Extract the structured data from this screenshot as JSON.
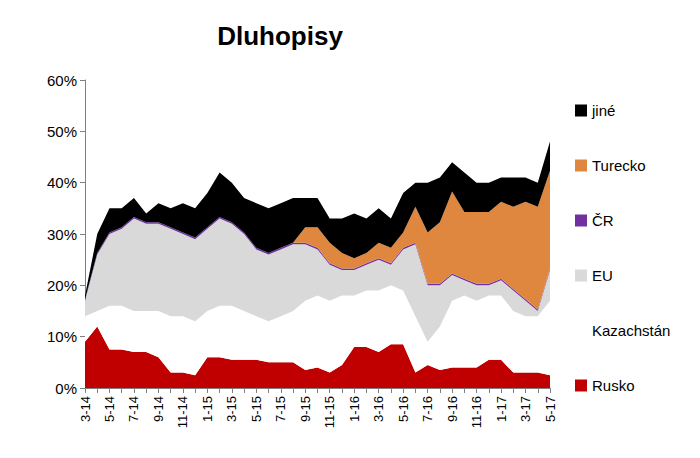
{
  "chart_data": {
    "type": "area",
    "title": "Dluhopisy",
    "stacked": true,
    "grid": false,
    "legend": "right",
    "categories": [
      "3-14",
      null,
      "5-14",
      null,
      "7-14",
      null,
      "9-14",
      null,
      "11-14",
      null,
      "1-15",
      null,
      "3-15",
      null,
      "5-15",
      null,
      "7-15",
      null,
      "9-15",
      null,
      "11-15",
      null,
      "1-16",
      null,
      "3-16",
      null,
      "5-16",
      null,
      "7-16",
      null,
      "9-16",
      null,
      "11-16",
      null,
      "1-17",
      null,
      "3-17",
      null,
      "5-17"
    ],
    "ylim": [
      0,
      60
    ],
    "yticks": [
      {
        "value": 0,
        "label": "0%"
      },
      {
        "value": 10,
        "label": "10%"
      },
      {
        "value": 20,
        "label": "20%"
      },
      {
        "value": 30,
        "label": "30%"
      },
      {
        "value": 40,
        "label": "40%"
      },
      {
        "value": 50,
        "label": "50%"
      },
      {
        "value": 60,
        "label": "60%"
      }
    ],
    "series": [
      {
        "name": "Rusko",
        "color": "#c00000",
        "values": [
          9,
          12,
          7.5,
          7.5,
          7,
          7,
          6,
          3,
          3,
          2.5,
          6,
          6,
          5.5,
          5.5,
          5.5,
          5,
          5,
          5,
          3.5,
          4,
          3,
          4.5,
          8,
          8,
          7,
          8.5,
          8.5,
          3,
          4.5,
          3.5,
          4,
          4,
          4,
          5.5,
          5.5,
          3,
          3,
          3,
          2.5
        ]
      },
      {
        "name": "Kazachstán",
        "color": "#ffffff",
        "values": [
          5,
          3,
          8.5,
          8.5,
          8,
          8,
          9,
          11,
          11,
          10.5,
          9,
          10,
          10.5,
          9.5,
          8.5,
          8,
          9,
          10,
          13.5,
          14,
          14,
          13.5,
          10,
          11,
          12,
          11.5,
          10.5,
          11,
          4.5,
          8.5,
          13,
          14,
          13,
          12.5,
          12.5,
          12,
          11,
          11,
          14.5
        ]
      },
      {
        "name": "EU",
        "color": "#d9d9d9",
        "values": [
          3,
          11,
          14,
          15,
          18,
          17,
          17,
          17,
          16,
          16,
          16,
          17,
          16,
          15,
          13,
          13,
          13,
          13,
          11,
          9,
          7,
          5,
          5,
          5,
          6,
          4,
          8,
          14,
          11,
          8,
          5,
          3,
          3,
          2,
          3,
          4,
          3,
          1,
          6
        ]
      },
      {
        "name": "ČR",
        "color": "#7030a0",
        "values": [
          0.3,
          0.3,
          0.3,
          0.3,
          0.3,
          0.3,
          0.3,
          0.3,
          0.3,
          0.3,
          0.3,
          0.3,
          0.3,
          0.3,
          0.3,
          0.3,
          0.3,
          0.3,
          0.3,
          0.3,
          0.3,
          0.3,
          0.3,
          0.3,
          0.3,
          0.3,
          0.3,
          0.3,
          0.3,
          0.3,
          0.3,
          0.3,
          0.3,
          0.3,
          0.3,
          0.3,
          0.3,
          0.3,
          0.3
        ]
      },
      {
        "name": "Turecko",
        "color": "#e0873f",
        "values": [
          0,
          0,
          0,
          0,
          0,
          0,
          0,
          0,
          0,
          0,
          0,
          0,
          0,
          0,
          0,
          0,
          0,
          0,
          3,
          4,
          4,
          3,
          2,
          2,
          3,
          3,
          3,
          7,
          10,
          12,
          16,
          13,
          14,
          14,
          15,
          16,
          19,
          20,
          19
        ]
      },
      {
        "name": "jiné",
        "color": "#000000",
        "values": [
          0.7,
          3.7,
          4.7,
          3.7,
          3.7,
          1.7,
          3.7,
          3.7,
          5.7,
          5.7,
          6.7,
          8.7,
          7.7,
          6.7,
          8.7,
          8.7,
          8.7,
          8.7,
          5.7,
          5.7,
          4.7,
          6.7,
          8.7,
          6.7,
          6.7,
          5.7,
          7.7,
          4.7,
          9.7,
          8.7,
          5.7,
          7.7,
          5.7,
          5.7,
          4.7,
          5.7,
          4.7,
          4.7,
          5.7
        ]
      }
    ]
  }
}
